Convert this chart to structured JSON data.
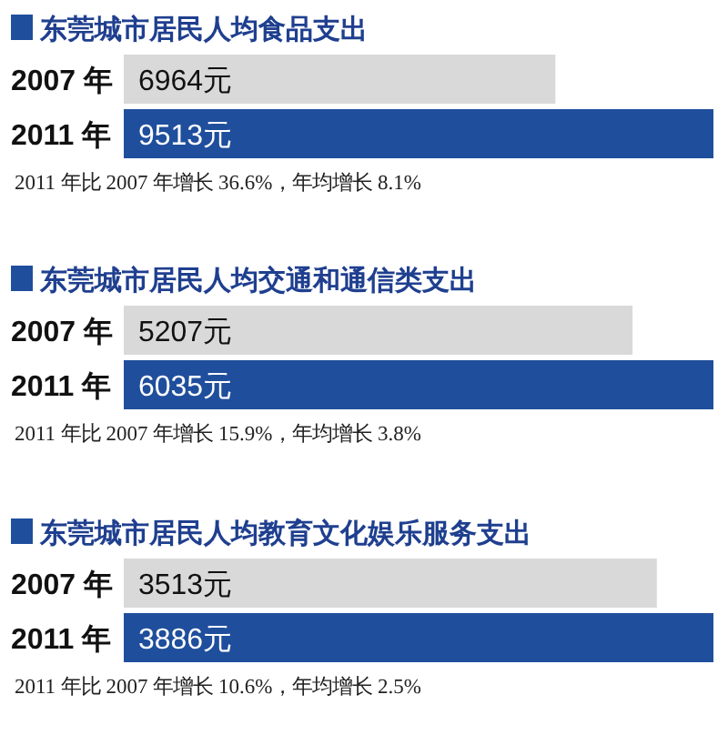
{
  "chart_data": [
    {
      "type": "bar",
      "orientation": "horizontal",
      "title": "东莞城市居民人均食品支出",
      "categories": [
        "2007 年",
        "2011 年"
      ],
      "values": [
        6964,
        9513
      ],
      "value_labels": [
        "6964元",
        "9513元"
      ],
      "colors": [
        "#d9d9d9",
        "#1f4e9c"
      ],
      "annotations": [
        "2011 年比 2007 年增长 36.6%，年均增长 8.1%"
      ]
    },
    {
      "type": "bar",
      "orientation": "horizontal",
      "title": "东莞城市居民人均交通和通信类支出",
      "categories": [
        "2007 年",
        "2011 年"
      ],
      "values": [
        5207,
        6035
      ],
      "value_labels": [
        "5207元",
        "6035元"
      ],
      "colors": [
        "#d9d9d9",
        "#1f4e9c"
      ],
      "annotations": [
        "2011 年比 2007 年增长 15.9%，年均增长 3.8%"
      ]
    },
    {
      "type": "bar",
      "orientation": "horizontal",
      "title": "东莞城市居民人均教育文化娱乐服务支出",
      "categories": [
        "2007 年",
        "2011 年"
      ],
      "values": [
        3513,
        3886
      ],
      "value_labels": [
        "3513元",
        "3886元"
      ],
      "colors": [
        "#d9d9d9",
        "#1f4e9c"
      ],
      "annotations": [
        "2011 年比 2007 年增长 10.6%，年均增长 2.5%"
      ]
    }
  ]
}
